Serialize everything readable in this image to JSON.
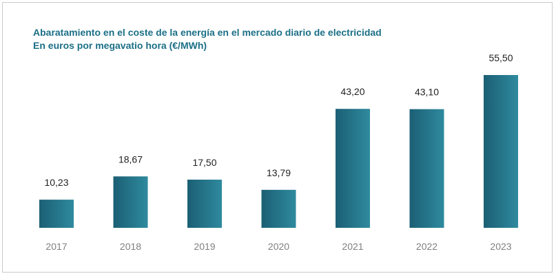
{
  "title": "Abaratamiento en el coste de la energía en el mercado diario de electricidad",
  "subtitle": "En euros por megavatio hora (€/MWh)",
  "chart_data": {
    "type": "bar",
    "title": "Abaratamiento en el coste de la energía en el mercado diario de electricidad",
    "subtitle": "En euros por megavatio hora (€/MWh)",
    "categories": [
      "2017",
      "2018",
      "2019",
      "2020",
      "2021",
      "2022",
      "2023"
    ],
    "values": [
      10.23,
      18.67,
      17.5,
      13.79,
      43.2,
      43.1,
      55.5
    ],
    "value_labels": [
      "10,23",
      "18,67",
      "17,50",
      "13,79",
      "43,20",
      "43,10",
      "55,50"
    ],
    "xlabel": "",
    "ylabel": "",
    "ylim": [
      0,
      55.5
    ],
    "grid": false,
    "legend": "none",
    "colors": {
      "bar_dark": "#1b5f74",
      "bar_light": "#2f8a9e",
      "title": "#1b6f86"
    }
  }
}
